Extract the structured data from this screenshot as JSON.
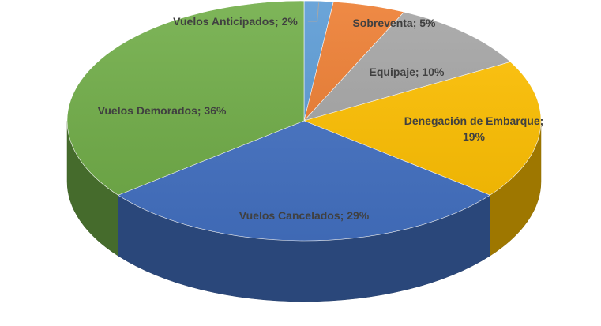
{
  "chart_data": {
    "type": "pie",
    "style": "3d",
    "title": "",
    "legend": "none",
    "slices": [
      {
        "name": "Vuelos Anticipados",
        "value": 2,
        "label": "Vuelos Anticipados; 2%",
        "color": "#5b9bd5"
      },
      {
        "name": "Sobreventa",
        "value": 5,
        "label": "Sobreventa; 5%",
        "color": "#ed7d31"
      },
      {
        "name": "Equipaje",
        "value": 10,
        "label": "Equipaje; 10%",
        "color": "#a5a5a5"
      },
      {
        "name": "Denegación de Embarque",
        "value": 19,
        "label": [
          "Denegación de Embarque;",
          "19%"
        ],
        "color": "#ffc000"
      },
      {
        "name": "Vuelos Cancelados",
        "value": 29,
        "label": "Vuelos Cancelados; 29%",
        "color": "#4472c4"
      },
      {
        "name": "Vuelos Demorados",
        "value": 36,
        "label": "Vuelos Demorados; 36%",
        "color": "#70ad47"
      }
    ]
  }
}
